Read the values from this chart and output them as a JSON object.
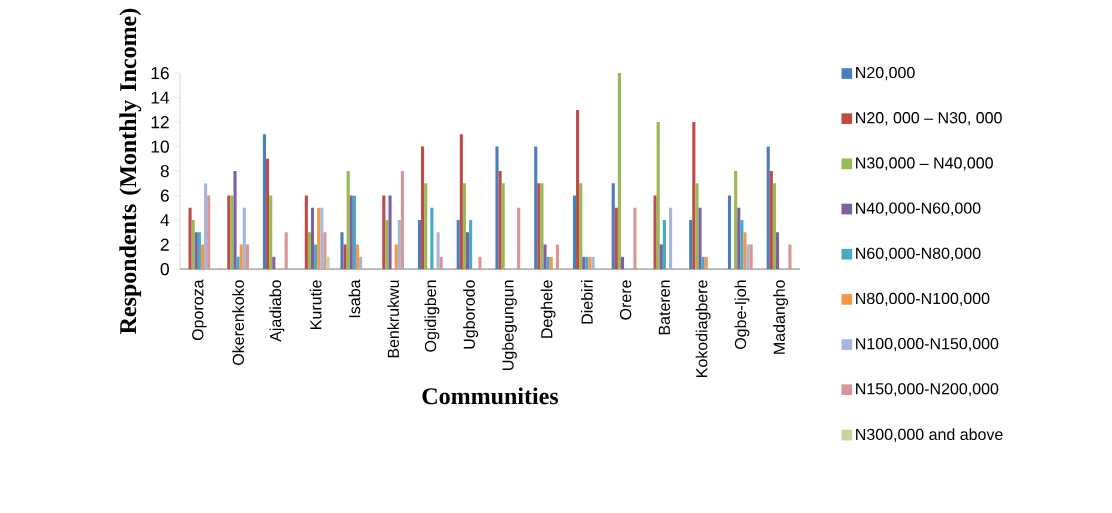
{
  "chart_data": {
    "type": "bar",
    "xlabel": "Communities",
    "ylabel": "Respondents (Monthly Income)",
    "categories": [
      "Oporoza",
      "Okerenkoko",
      "Ajadiabo",
      "Kurutie",
      "Isaba",
      "Benkrukwu",
      "Ogidigben",
      "Ugborodo",
      "Ugbegungun",
      "Deghele",
      "Diebiri",
      "Orere",
      "Bateren",
      "Kokodiagbere",
      "Ogbe-Ijoh",
      "Madangho"
    ],
    "ylim": [
      0,
      16
    ],
    "yticks": [
      0,
      2,
      4,
      6,
      8,
      10,
      12,
      14,
      16
    ],
    "grid": false,
    "legend": "right",
    "series": [
      {
        "name": "N20,000",
        "color": "#4a7ebb",
        "values": [
          0,
          0,
          11,
          0,
          3,
          0,
          4,
          4,
          10,
          10,
          6,
          7,
          0,
          4,
          6,
          10
        ]
      },
      {
        "name": "N20, 000 – N30, 000",
        "color": "#be4b48",
        "values": [
          5,
          6,
          9,
          6,
          2,
          6,
          10,
          11,
          8,
          7,
          13,
          5,
          6,
          12,
          0,
          8
        ]
      },
      {
        "name": "N30,000 – N40,000",
        "color": "#98b954",
        "values": [
          4,
          6,
          6,
          3,
          8,
          4,
          7,
          7,
          7,
          7,
          7,
          16,
          12,
          7,
          8,
          7
        ]
      },
      {
        "name": "N40,000-N60,000",
        "color": "#7d60a0",
        "values": [
          3,
          8,
          1,
          5,
          6,
          6,
          0,
          3,
          0,
          2,
          1,
          1,
          2,
          5,
          5,
          3
        ]
      },
      {
        "name": "N60,000-N80,000",
        "color": "#46aac5",
        "values": [
          3,
          1,
          0,
          2,
          6,
          0,
          5,
          4,
          0,
          1,
          1,
          0,
          4,
          1,
          4,
          0
        ]
      },
      {
        "name": "N80,000-N100,000",
        "color": "#f79646",
        "values": [
          2,
          2,
          0,
          5,
          2,
          2,
          0,
          0,
          0,
          1,
          1,
          0,
          0,
          1,
          3,
          0
        ]
      },
      {
        "name": "N100,000-N150,000",
        "color": "#a5b6da",
        "values": [
          7,
          5,
          0,
          5,
          1,
          4,
          3,
          0,
          0,
          0,
          1,
          0,
          5,
          0,
          2,
          0
        ]
      },
      {
        "name": "N150,000-N200,000",
        "color": "#d99694",
        "values": [
          6,
          2,
          3,
          3,
          0,
          8,
          1,
          1,
          5,
          2,
          0,
          5,
          0,
          0,
          2,
          2
        ]
      },
      {
        "name": "N300,000 and above",
        "color": "#c3d69b",
        "values": [
          0,
          0,
          0,
          1,
          0,
          0,
          0,
          0,
          0,
          0,
          0,
          0,
          0,
          0,
          0,
          0
        ]
      }
    ]
  }
}
